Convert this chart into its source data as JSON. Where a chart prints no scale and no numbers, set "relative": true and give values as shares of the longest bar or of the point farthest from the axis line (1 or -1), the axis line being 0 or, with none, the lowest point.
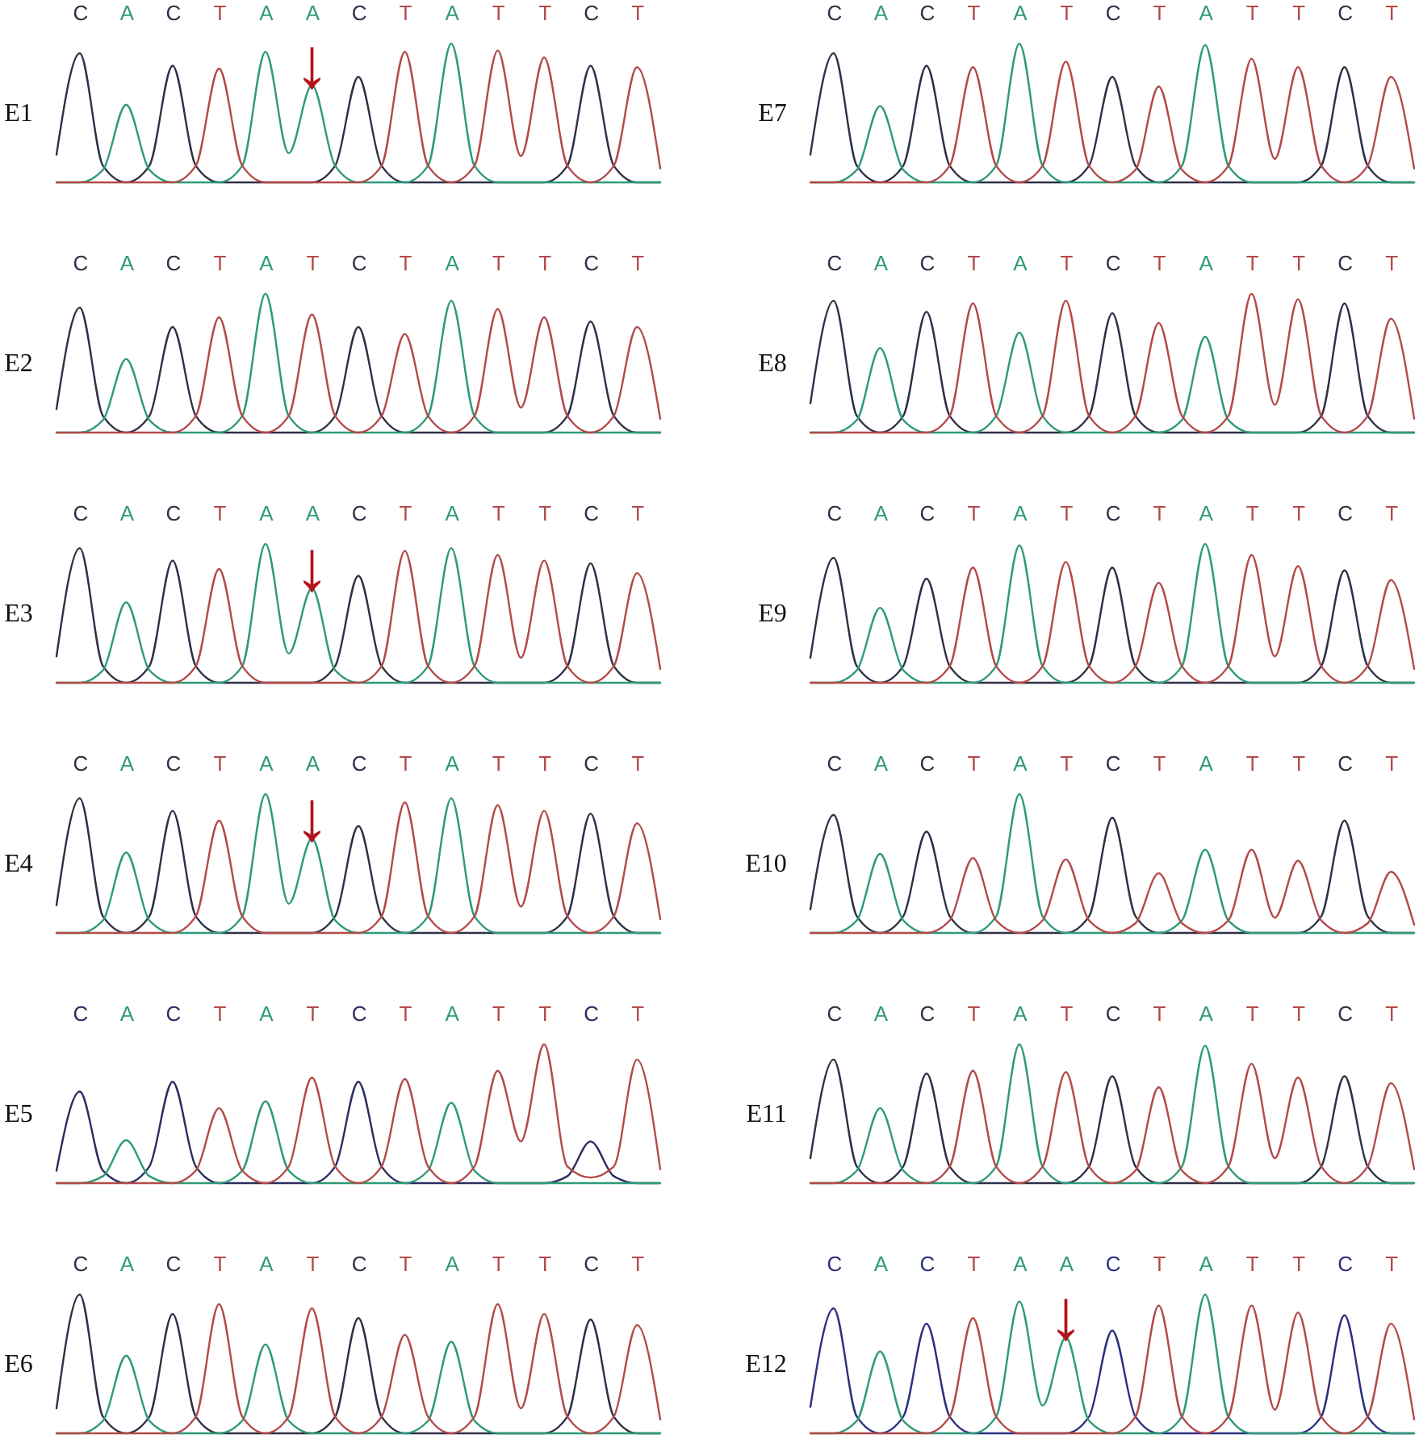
{
  "chart_data": [
    {
      "type": "line",
      "title": "E1",
      "relative": true,
      "tick_labels": "x",
      "categories": [
        null,
        "C",
        null,
        "A",
        null,
        "C",
        null,
        "T",
        null,
        "A",
        null,
        "A",
        null,
        "C",
        null,
        "T",
        null,
        "A",
        null,
        "T",
        null,
        "T",
        null,
        "C",
        null,
        "T",
        null
      ],
      "series": [
        {
          "color": "#2e3046",
          "values": [
            0.2,
            0.93,
            0.12,
            0,
            0.12,
            0.84,
            0.12,
            0,
            0,
            0,
            0,
            0,
            0.12,
            0.76,
            0.12,
            0,
            0,
            0,
            0,
            0,
            0,
            0,
            0.12,
            0.84,
            0.12,
            0,
            0
          ]
        },
        {
          "color": "#2f9a78",
          "values": [
            0,
            0,
            0.09,
            0.56,
            0.09,
            0,
            0,
            0,
            0.12,
            0.94,
            0.21,
            0.7,
            0.12,
            0,
            0,
            0,
            0.12,
            1,
            0.12,
            0,
            0,
            0,
            0,
            0,
            0,
            0,
            0
          ]
        },
        {
          "color": "#b34a4a",
          "values": [
            0,
            0,
            0,
            0,
            0,
            0,
            0.12,
            0.82,
            0.12,
            0,
            0,
            0,
            0,
            0,
            0.12,
            0.94,
            0.12,
            0,
            0.12,
            0.95,
            0.19,
            0.9,
            0.12,
            0,
            0.12,
            0.83,
            0.1
          ]
        }
      ],
      "annotations": [
        {
          "text": "↓",
          "y": 0.7
        }
      ]
    },
    {
      "type": "line",
      "title": "E2",
      "relative": true,
      "tick_labels": "x",
      "categories": [
        null,
        "C",
        null,
        "A",
        null,
        "C",
        null,
        "T",
        null,
        "A",
        null,
        "T",
        null,
        "C",
        null,
        "T",
        null,
        "A",
        null,
        "T",
        null,
        "T",
        null,
        "C",
        null,
        "T",
        null
      ],
      "series": [
        {
          "color": "#2e3046",
          "values": [
            0.17,
            0.9,
            0.12,
            0,
            0.12,
            0.76,
            0.12,
            0,
            0,
            0,
            0,
            0,
            0.12,
            0.76,
            0.12,
            0,
            0,
            0,
            0,
            0,
            0,
            0,
            0.12,
            0.8,
            0.12,
            0,
            0
          ]
        },
        {
          "color": "#2f9a78",
          "values": [
            0,
            0,
            0.09,
            0.53,
            0.09,
            0,
            0,
            0,
            0.12,
            1,
            0.12,
            0,
            0,
            0,
            0,
            0,
            0.12,
            0.95,
            0.12,
            0,
            0,
            0,
            0,
            0,
            0,
            0,
            0
          ]
        },
        {
          "color": "#b34a4a",
          "values": [
            0,
            0,
            0,
            0,
            0,
            0,
            0.12,
            0.83,
            0.12,
            0,
            0.12,
            0.85,
            0.12,
            0,
            0.12,
            0.71,
            0.12,
            0,
            0.12,
            0.89,
            0.18,
            0.83,
            0.12,
            0,
            0.12,
            0.76,
            0.1
          ]
        }
      ]
    },
    {
      "type": "line",
      "title": "E3",
      "relative": true,
      "tick_labels": "x",
      "categories": [
        null,
        "C",
        null,
        "A",
        null,
        "C",
        null,
        "T",
        null,
        "A",
        null,
        "A",
        null,
        "C",
        null,
        "T",
        null,
        "A",
        null,
        "T",
        null,
        "T",
        null,
        "C",
        null,
        "T",
        null
      ],
      "series": [
        {
          "color": "#2e3046",
          "values": [
            0.19,
            0.97,
            0.12,
            0,
            0.12,
            0.88,
            0.12,
            0,
            0,
            0,
            0,
            0,
            0.12,
            0.77,
            0.12,
            0,
            0,
            0,
            0,
            0,
            0,
            0,
            0.12,
            0.86,
            0.12,
            0,
            0
          ]
        },
        {
          "color": "#2f9a78",
          "values": [
            0,
            0,
            0.09,
            0.58,
            0.09,
            0,
            0,
            0,
            0.12,
            1,
            0.21,
            0.68,
            0.09,
            0,
            0,
            0,
            0.12,
            0.97,
            0.12,
            0,
            0,
            0,
            0,
            0,
            0,
            0,
            0
          ]
        },
        {
          "color": "#b34a4a",
          "values": [
            0,
            0,
            0,
            0,
            0,
            0,
            0.12,
            0.82,
            0.12,
            0,
            0,
            0,
            0,
            0,
            0.12,
            0.95,
            0.12,
            0,
            0.12,
            0.92,
            0.18,
            0.88,
            0.12,
            0,
            0.12,
            0.79,
            0.1
          ]
        }
      ],
      "annotations": [
        {
          "text": "↓",
          "y": 0.68
        }
      ]
    },
    {
      "type": "line",
      "title": "E4",
      "relative": true,
      "tick_labels": "x",
      "categories": [
        null,
        "C",
        null,
        "A",
        null,
        "C",
        null,
        "T",
        null,
        "A",
        null,
        "A",
        null,
        "C",
        null,
        "T",
        null,
        "A",
        null,
        "T",
        null,
        "T",
        null,
        "C",
        null,
        "T",
        null
      ],
      "series": [
        {
          "color": "#2e3046",
          "values": [
            0.2,
            0.97,
            0.12,
            0,
            0.12,
            0.88,
            0.12,
            0,
            0,
            0,
            0,
            0,
            0.12,
            0.77,
            0.12,
            0,
            0,
            0,
            0,
            0,
            0,
            0,
            0.12,
            0.86,
            0.12,
            0,
            0
          ]
        },
        {
          "color": "#2f9a78",
          "values": [
            0,
            0,
            0.09,
            0.58,
            0.09,
            0,
            0,
            0,
            0.12,
            1,
            0.21,
            0.68,
            0.09,
            0,
            0,
            0,
            0.12,
            0.97,
            0.12,
            0,
            0,
            0,
            0,
            0,
            0,
            0,
            0
          ]
        },
        {
          "color": "#b34a4a",
          "values": [
            0,
            0,
            0,
            0,
            0,
            0,
            0.12,
            0.81,
            0.12,
            0,
            0,
            0,
            0,
            0,
            0.12,
            0.94,
            0.12,
            0,
            0.12,
            0.92,
            0.19,
            0.88,
            0.12,
            0,
            0.12,
            0.79,
            0.1
          ]
        }
      ],
      "annotations": [
        {
          "text": "↓",
          "y": 0.68
        }
      ]
    },
    {
      "type": "line",
      "title": "E5",
      "relative": true,
      "tick_labels": "x",
      "categories": [
        null,
        "C",
        null,
        "A",
        null,
        "C",
        null,
        "T",
        null,
        "A",
        null,
        "T",
        null,
        "C",
        null,
        "T",
        null,
        "A",
        null,
        "T",
        null,
        "T",
        null,
        "C",
        null,
        "T",
        null
      ],
      "series": [
        {
          "color": "#2b2d62",
          "values": [
            0.09,
            0.66,
            0.09,
            0,
            0.12,
            0.73,
            0.12,
            0,
            0,
            0,
            0,
            0,
            0.12,
            0.73,
            0.12,
            0,
            0,
            0,
            0,
            0,
            0,
            0,
            0.05,
            0.3,
            0.05,
            0,
            0
          ]
        },
        {
          "color": "#2f9a78",
          "values": [
            0,
            0,
            0.05,
            0.31,
            0.05,
            0,
            0,
            0,
            0.09,
            0.59,
            0.09,
            0,
            0,
            0,
            0,
            0,
            0.09,
            0.58,
            0.09,
            0,
            0,
            0,
            0,
            0,
            0,
            0,
            0
          ]
        },
        {
          "color": "#b34a4a",
          "values": [
            0,
            0,
            0,
            0,
            0,
            0,
            0.09,
            0.54,
            0.09,
            0,
            0.12,
            0.76,
            0.12,
            0,
            0.12,
            0.75,
            0.12,
            0,
            0.12,
            0.81,
            0.3,
            1,
            0.12,
            0.04,
            0.12,
            0.89,
            0.1
          ]
        }
      ]
    },
    {
      "type": "line",
      "title": "E6",
      "relative": true,
      "tick_labels": "x",
      "categories": [
        null,
        "C",
        null,
        "A",
        null,
        "C",
        null,
        "T",
        null,
        "A",
        null,
        "T",
        null,
        "C",
        null,
        "T",
        null,
        "A",
        null,
        "T",
        null,
        "T",
        null,
        "C",
        null,
        "T",
        null
      ],
      "series": [
        {
          "color": "#2e3046",
          "values": [
            0.18,
            1,
            0.12,
            0,
            0.12,
            0.86,
            0.12,
            0,
            0,
            0,
            0,
            0,
            0.12,
            0.83,
            0.12,
            0,
            0,
            0,
            0,
            0,
            0,
            0,
            0.12,
            0.82,
            0.12,
            0,
            0
          ]
        },
        {
          "color": "#2f9a78",
          "values": [
            0,
            0,
            0.09,
            0.56,
            0.09,
            0,
            0,
            0,
            0.09,
            0.64,
            0.09,
            0,
            0,
            0,
            0,
            0,
            0.09,
            0.66,
            0.09,
            0,
            0,
            0,
            0,
            0,
            0,
            0,
            0
          ]
        },
        {
          "color": "#b34a4a",
          "values": [
            0,
            0,
            0,
            0,
            0,
            0,
            0.12,
            0.93,
            0.12,
            0,
            0.12,
            0.9,
            0.12,
            0,
            0.12,
            0.71,
            0.12,
            0,
            0.12,
            0.93,
            0.18,
            0.86,
            0.12,
            0,
            0.12,
            0.78,
            0.1
          ]
        }
      ]
    },
    {
      "type": "line",
      "title": "E7",
      "relative": true,
      "tick_labels": "x",
      "categories": [
        null,
        "C",
        null,
        "A",
        null,
        "C",
        null,
        "T",
        null,
        "A",
        null,
        "T",
        null,
        "C",
        null,
        "T",
        null,
        "A",
        null,
        "T",
        null,
        "T",
        null,
        "C",
        null,
        "T",
        null
      ],
      "series": [
        {
          "color": "#2e3046",
          "values": [
            0.2,
            0.93,
            0.12,
            0,
            0.12,
            0.84,
            0.12,
            0,
            0,
            0,
            0,
            0,
            0.12,
            0.76,
            0.12,
            0,
            0,
            0,
            0,
            0,
            0,
            0,
            0.12,
            0.83,
            0.12,
            0,
            0
          ]
        },
        {
          "color": "#2f9a78",
          "values": [
            0,
            0,
            0.09,
            0.55,
            0.09,
            0,
            0,
            0,
            0.12,
            1,
            0.12,
            0,
            0,
            0,
            0,
            0,
            0.12,
            0.99,
            0.12,
            0,
            0,
            0,
            0,
            0,
            0,
            0,
            0
          ]
        },
        {
          "color": "#b34a4a",
          "values": [
            0,
            0,
            0,
            0,
            0,
            0,
            0.12,
            0.83,
            0.12,
            0,
            0.12,
            0.87,
            0.12,
            0,
            0.09,
            0.69,
            0.09,
            0,
            0.12,
            0.89,
            0.17,
            0.83,
            0.12,
            0,
            0.12,
            0.76,
            0.1
          ]
        }
      ]
    },
    {
      "type": "line",
      "title": "E8",
      "relative": true,
      "tick_labels": "x",
      "categories": [
        null,
        "C",
        null,
        "A",
        null,
        "C",
        null,
        "T",
        null,
        "A",
        null,
        "T",
        null,
        "C",
        null,
        "T",
        null,
        "A",
        null,
        "T",
        null,
        "T",
        null,
        "C",
        null,
        "T",
        null
      ],
      "series": [
        {
          "color": "#2e3046",
          "values": [
            0.21,
            0.95,
            0.12,
            0,
            0.12,
            0.87,
            0.12,
            0,
            0,
            0,
            0,
            0,
            0.12,
            0.86,
            0.12,
            0,
            0,
            0,
            0,
            0,
            0,
            0,
            0.12,
            0.93,
            0.12,
            0,
            0
          ]
        },
        {
          "color": "#2f9a78",
          "values": [
            0,
            0,
            0.09,
            0.61,
            0.09,
            0,
            0,
            0,
            0.12,
            0.72,
            0.12,
            0,
            0,
            0,
            0,
            0,
            0.09,
            0.69,
            0.09,
            0,
            0,
            0,
            0,
            0,
            0,
            0,
            0
          ]
        },
        {
          "color": "#b34a4a",
          "values": [
            0,
            0,
            0,
            0,
            0,
            0,
            0.12,
            0.93,
            0.12,
            0,
            0.12,
            0.95,
            0.12,
            0,
            0.12,
            0.79,
            0.12,
            0,
            0.12,
            1,
            0.2,
            0.96,
            0.12,
            0,
            0.12,
            0.82,
            0.1
          ]
        }
      ]
    },
    {
      "type": "line",
      "title": "E9",
      "relative": true,
      "tick_labels": "x",
      "categories": [
        null,
        "C",
        null,
        "A",
        null,
        "C",
        null,
        "T",
        null,
        "A",
        null,
        "T",
        null,
        "C",
        null,
        "T",
        null,
        "A",
        null,
        "T",
        null,
        "T",
        null,
        "C",
        null,
        "T",
        null
      ],
      "series": [
        {
          "color": "#2e3046",
          "values": [
            0.18,
            0.9,
            0.12,
            0,
            0.12,
            0.75,
            0.12,
            0,
            0,
            0,
            0,
            0,
            0.12,
            0.83,
            0.12,
            0,
            0,
            0,
            0,
            0,
            0,
            0,
            0.12,
            0.81,
            0.12,
            0,
            0
          ]
        },
        {
          "color": "#2f9a78",
          "values": [
            0,
            0,
            0.09,
            0.54,
            0.09,
            0,
            0,
            0,
            0.12,
            0.99,
            0.12,
            0,
            0,
            0,
            0,
            0,
            0.12,
            1,
            0.12,
            0,
            0,
            0,
            0,
            0,
            0,
            0,
            0
          ]
        },
        {
          "color": "#b34a4a",
          "values": [
            0,
            0,
            0,
            0,
            0,
            0,
            0.12,
            0.83,
            0.12,
            0,
            0.12,
            0.87,
            0.12,
            0,
            0.12,
            0.72,
            0.12,
            0,
            0.12,
            0.92,
            0.19,
            0.84,
            0.12,
            0,
            0.12,
            0.74,
            0.1
          ]
        }
      ]
    },
    {
      "type": "line",
      "title": "E10",
      "relative": true,
      "tick_labels": "x",
      "categories": [
        null,
        "C",
        null,
        "A",
        null,
        "C",
        null,
        "T",
        null,
        "A",
        null,
        "T",
        null,
        "C",
        null,
        "T",
        null,
        "A",
        null,
        "T",
        null,
        "T",
        null,
        "C",
        null,
        "T",
        null
      ],
      "series": [
        {
          "color": "#2e3046",
          "values": [
            0.17,
            0.85,
            0.12,
            0,
            0.12,
            0.73,
            0.12,
            0,
            0,
            0,
            0,
            0,
            0.12,
            0.83,
            0.12,
            0,
            0,
            0,
            0,
            0,
            0,
            0,
            0.12,
            0.81,
            0.12,
            0,
            0
          ]
        },
        {
          "color": "#2f9a78",
          "values": [
            0,
            0,
            0.09,
            0.57,
            0.09,
            0,
            0,
            0,
            0.12,
            1,
            0.12,
            0,
            0,
            0,
            0,
            0,
            0.09,
            0.6,
            0.09,
            0,
            0,
            0,
            0,
            0,
            0,
            0,
            0
          ]
        },
        {
          "color": "#b34a4a",
          "values": [
            0,
            0,
            0,
            0,
            0,
            0,
            0.09,
            0.54,
            0.09,
            0,
            0.09,
            0.53,
            0.09,
            0,
            0.07,
            0.43,
            0.07,
            0,
            0.09,
            0.6,
            0.11,
            0.52,
            0.09,
            0,
            0.07,
            0.44,
            0.06
          ]
        }
      ]
    },
    {
      "type": "line",
      "title": "E11",
      "relative": true,
      "tick_labels": "x",
      "categories": [
        null,
        "C",
        null,
        "A",
        null,
        "C",
        null,
        "T",
        null,
        "A",
        null,
        "T",
        null,
        "C",
        null,
        "T",
        null,
        "A",
        null,
        "T",
        null,
        "T",
        null,
        "C",
        null,
        "T",
        null
      ],
      "series": [
        {
          "color": "#2e3046",
          "values": [
            0.18,
            0.89,
            0.12,
            0,
            0.12,
            0.79,
            0.12,
            0,
            0,
            0,
            0,
            0,
            0.12,
            0.77,
            0.12,
            0,
            0,
            0,
            0,
            0,
            0,
            0,
            0.12,
            0.77,
            0.12,
            0,
            0
          ]
        },
        {
          "color": "#2f9a78",
          "values": [
            0,
            0,
            0.09,
            0.54,
            0.09,
            0,
            0,
            0,
            0.12,
            1,
            0.12,
            0,
            0,
            0,
            0,
            0,
            0.12,
            0.99,
            0.12,
            0,
            0,
            0,
            0,
            0,
            0,
            0,
            0
          ]
        },
        {
          "color": "#b34a4a",
          "values": [
            0,
            0,
            0,
            0,
            0,
            0,
            0.12,
            0.81,
            0.12,
            0,
            0.12,
            0.8,
            0.12,
            0,
            0.09,
            0.69,
            0.09,
            0,
            0.12,
            0.86,
            0.18,
            0.76,
            0.12,
            0,
            0.12,
            0.72,
            0.1
          ]
        }
      ]
    },
    {
      "type": "line",
      "title": "E12",
      "relative": true,
      "tick_labels": "x",
      "categories": [
        null,
        "C",
        null,
        "A",
        null,
        "C",
        null,
        "T",
        null,
        "A",
        null,
        "A",
        null,
        "C",
        null,
        "T",
        null,
        "A",
        null,
        "T",
        null,
        "T",
        null,
        "C",
        null,
        "T",
        null
      ],
      "series": [
        {
          "color": "#2b3080",
          "values": [
            0.19,
            0.9,
            0.12,
            0,
            0.12,
            0.79,
            0.12,
            0,
            0,
            0,
            0,
            0,
            0.12,
            0.74,
            0.12,
            0,
            0,
            0,
            0,
            0,
            0,
            0,
            0.12,
            0.85,
            0.12,
            0,
            0
          ]
        },
        {
          "color": "#2f9a78",
          "values": [
            0,
            0,
            0.09,
            0.59,
            0.09,
            0,
            0,
            0,
            0.12,
            0.95,
            0.2,
            0.69,
            0.09,
            0,
            0,
            0,
            0.12,
            1,
            0.12,
            0,
            0,
            0,
            0,
            0,
            0,
            0,
            0
          ]
        },
        {
          "color": "#b34a4a",
          "values": [
            0,
            0,
            0,
            0,
            0,
            0,
            0.12,
            0.83,
            0.12,
            0,
            0,
            0,
            0,
            0,
            0.12,
            0.92,
            0.12,
            0,
            0.12,
            0.92,
            0.17,
            0.87,
            0.12,
            0,
            0.12,
            0.79,
            0.1
          ]
        }
      ],
      "annotations": [
        {
          "text": "↓",
          "y": 0.69
        }
      ]
    }
  ]
}
